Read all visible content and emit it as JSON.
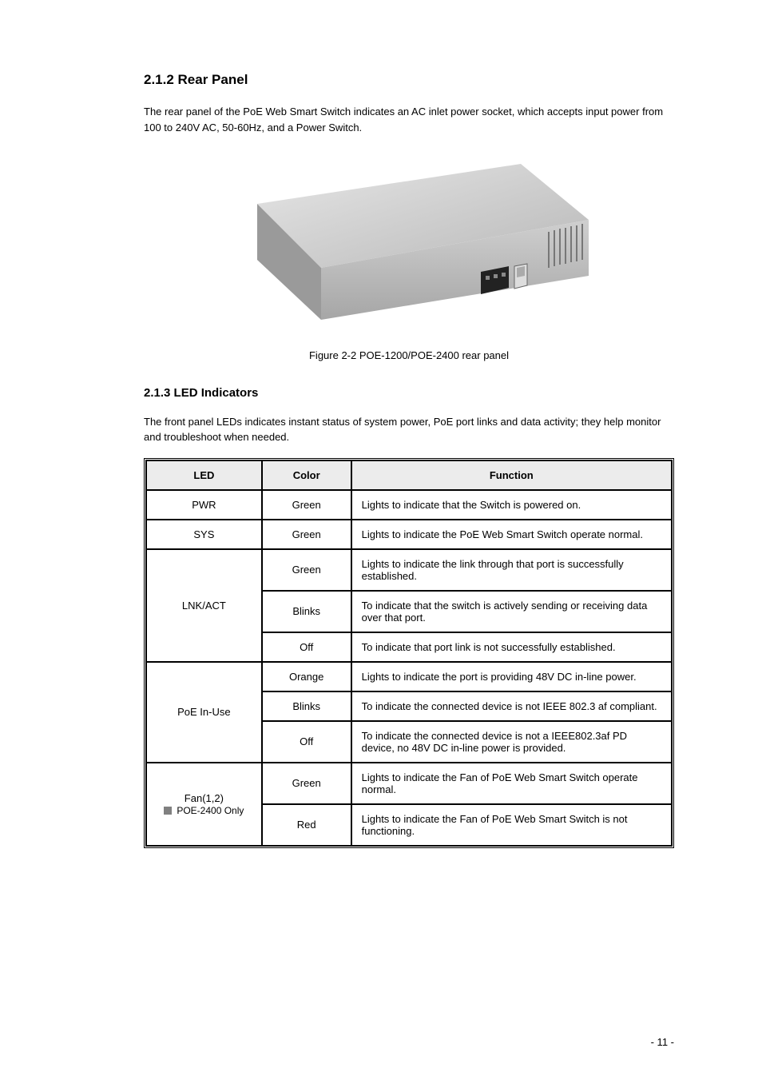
{
  "section": {
    "head": "2.1.2 Rear Panel",
    "intro": "The rear panel of the PoE Web Smart Switch indicates an AC inlet power socket, which accepts input power from 100 to 240V AC, 50-60Hz, and a Power Switch.",
    "figcap": "Figure 2-2 POE-1200/POE-2400 rear panel"
  },
  "sub": "2.1.3 LED Indicators",
  "led_intro": "The front panel LEDs indicates instant status of system power, PoE port links and data activity; they help monitor and troubleshoot when needed.",
  "table": {
    "headers": [
      "LED",
      "Color",
      "Function"
    ],
    "rows": [
      {
        "led": "PWR",
        "color": "Green",
        "fun": "Lights to indicate that the Switch is powered on."
      },
      {
        "led": "SYS",
        "color": "Green",
        "fun": "Lights to indicate the PoE Web Smart Switch operate normal."
      },
      {
        "led": "LNK/ACT",
        "sub": [
          {
            "color": "Green",
            "fun": "Lights to indicate the link through that port is successfully established."
          },
          {
            "color": "Blinks",
            "fun": "To indicate that the switch is actively sending or receiving data over that port."
          },
          {
            "color": "Off",
            "fun": "To indicate that port link is not successfully established."
          }
        ]
      },
      {
        "led": "PoE In-Use",
        "sub": [
          {
            "color": "Orange",
            "fun": "Lights to indicate the port is providing 48V DC in-line power."
          },
          {
            "color": "Blinks",
            "fun": "To indicate the connected device is not IEEE 802.3 af compliant."
          },
          {
            "color": "Off",
            "fun": "To indicate the connected device is not a IEEE802.3af PD device, no 48V DC in-line power is provided."
          }
        ]
      },
      {
        "led": "Fan(1,2)",
        "note": " POE-2400 Only",
        "sub": [
          {
            "color": "Green",
            "fun": "Lights to indicate the Fan of PoE Web Smart Switch operate normal."
          },
          {
            "color": "Red",
            "fun": "Lights to indicate the Fan of PoE Web Smart Switch is not functioning."
          }
        ]
      }
    ]
  },
  "pagenum": "- 11 -"
}
